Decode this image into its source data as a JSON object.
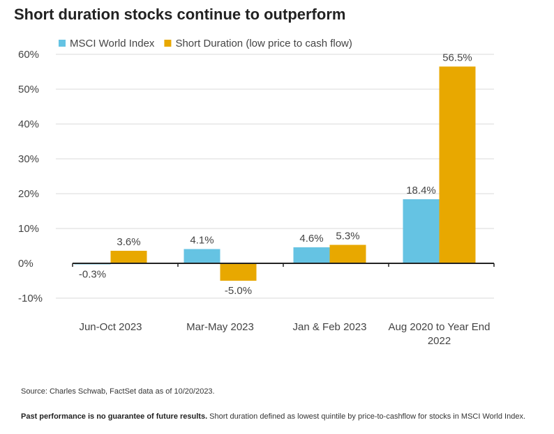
{
  "title": "Short duration stocks continue to outperform",
  "chart_data": {
    "type": "bar",
    "categories": [
      [
        "Jun-Oct 2023"
      ],
      [
        "Mar-May 2023"
      ],
      [
        "Jan & Feb 2023"
      ],
      [
        "Aug 2020 to Year End",
        "2022"
      ]
    ],
    "series": [
      {
        "name": "MSCI World Index",
        "color": "#65c3e3",
        "values": [
          -0.3,
          4.1,
          4.6,
          18.4
        ],
        "labels": [
          "-0.3%",
          "4.1%",
          "4.6%",
          "18.4%"
        ]
      },
      {
        "name": "Short Duration (low price to cash flow)",
        "color": "#e8a800",
        "values": [
          3.6,
          -5.0,
          5.3,
          56.5
        ],
        "labels": [
          "3.6%",
          "-5.0%",
          "5.3%",
          "56.5%"
        ]
      }
    ],
    "ylim": [
      -10,
      60
    ],
    "yticks": [
      60,
      50,
      40,
      30,
      20,
      10,
      0,
      -10
    ],
    "ytick_labels": [
      "60%",
      "50%",
      "40%",
      "30%",
      "20%",
      "10%",
      "0%",
      "-10%"
    ],
    "grid": true,
    "legend_position": "top-left"
  },
  "source": "Source: Charles Schwab, FactSet data as of 10/20/2023.",
  "disclaimer_bold": "Past performance is no guarantee of future results.",
  "disclaimer_text": " Short duration defined as lowest quintile by price-to-cashflow for stocks in MSCI World Index."
}
